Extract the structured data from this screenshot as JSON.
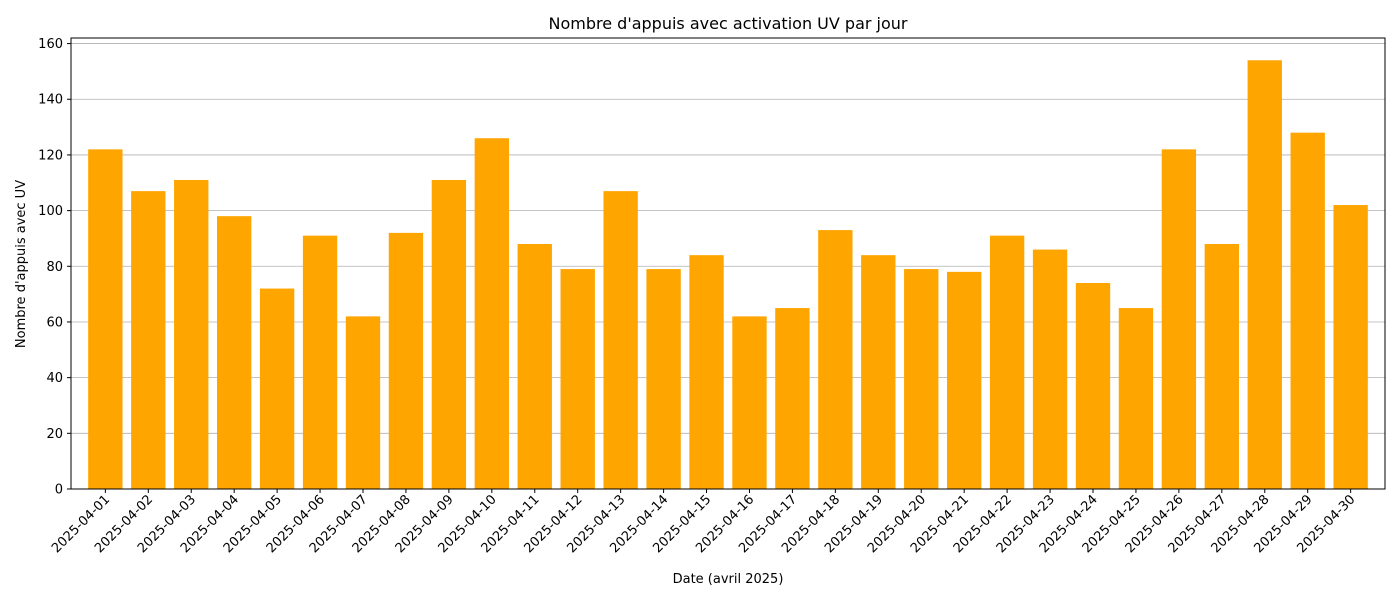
{
  "chart_data": {
    "type": "bar",
    "title": "Nombre d'appuis avec activation UV par jour",
    "xlabel": "Date (avril 2025)",
    "ylabel": "Nombre d'appuis avec UV",
    "ylim": [
      0,
      162
    ],
    "yticks": [
      0,
      20,
      40,
      60,
      80,
      100,
      120,
      140,
      160
    ],
    "grid": "horizontal",
    "bar_color": "#FFA500",
    "categories": [
      "2025-04-01",
      "2025-04-02",
      "2025-04-03",
      "2025-04-04",
      "2025-04-05",
      "2025-04-06",
      "2025-04-07",
      "2025-04-08",
      "2025-04-09",
      "2025-04-10",
      "2025-04-11",
      "2025-04-12",
      "2025-04-13",
      "2025-04-14",
      "2025-04-15",
      "2025-04-16",
      "2025-04-17",
      "2025-04-18",
      "2025-04-19",
      "2025-04-20",
      "2025-04-21",
      "2025-04-22",
      "2025-04-23",
      "2025-04-24",
      "2025-04-25",
      "2025-04-26",
      "2025-04-27",
      "2025-04-28",
      "2025-04-29",
      "2025-04-30"
    ],
    "values": [
      122,
      107,
      111,
      98,
      72,
      91,
      62,
      92,
      111,
      126,
      88,
      79,
      107,
      79,
      84,
      62,
      65,
      93,
      84,
      79,
      78,
      91,
      86,
      74,
      65,
      122,
      88,
      154,
      128,
      102
    ]
  }
}
